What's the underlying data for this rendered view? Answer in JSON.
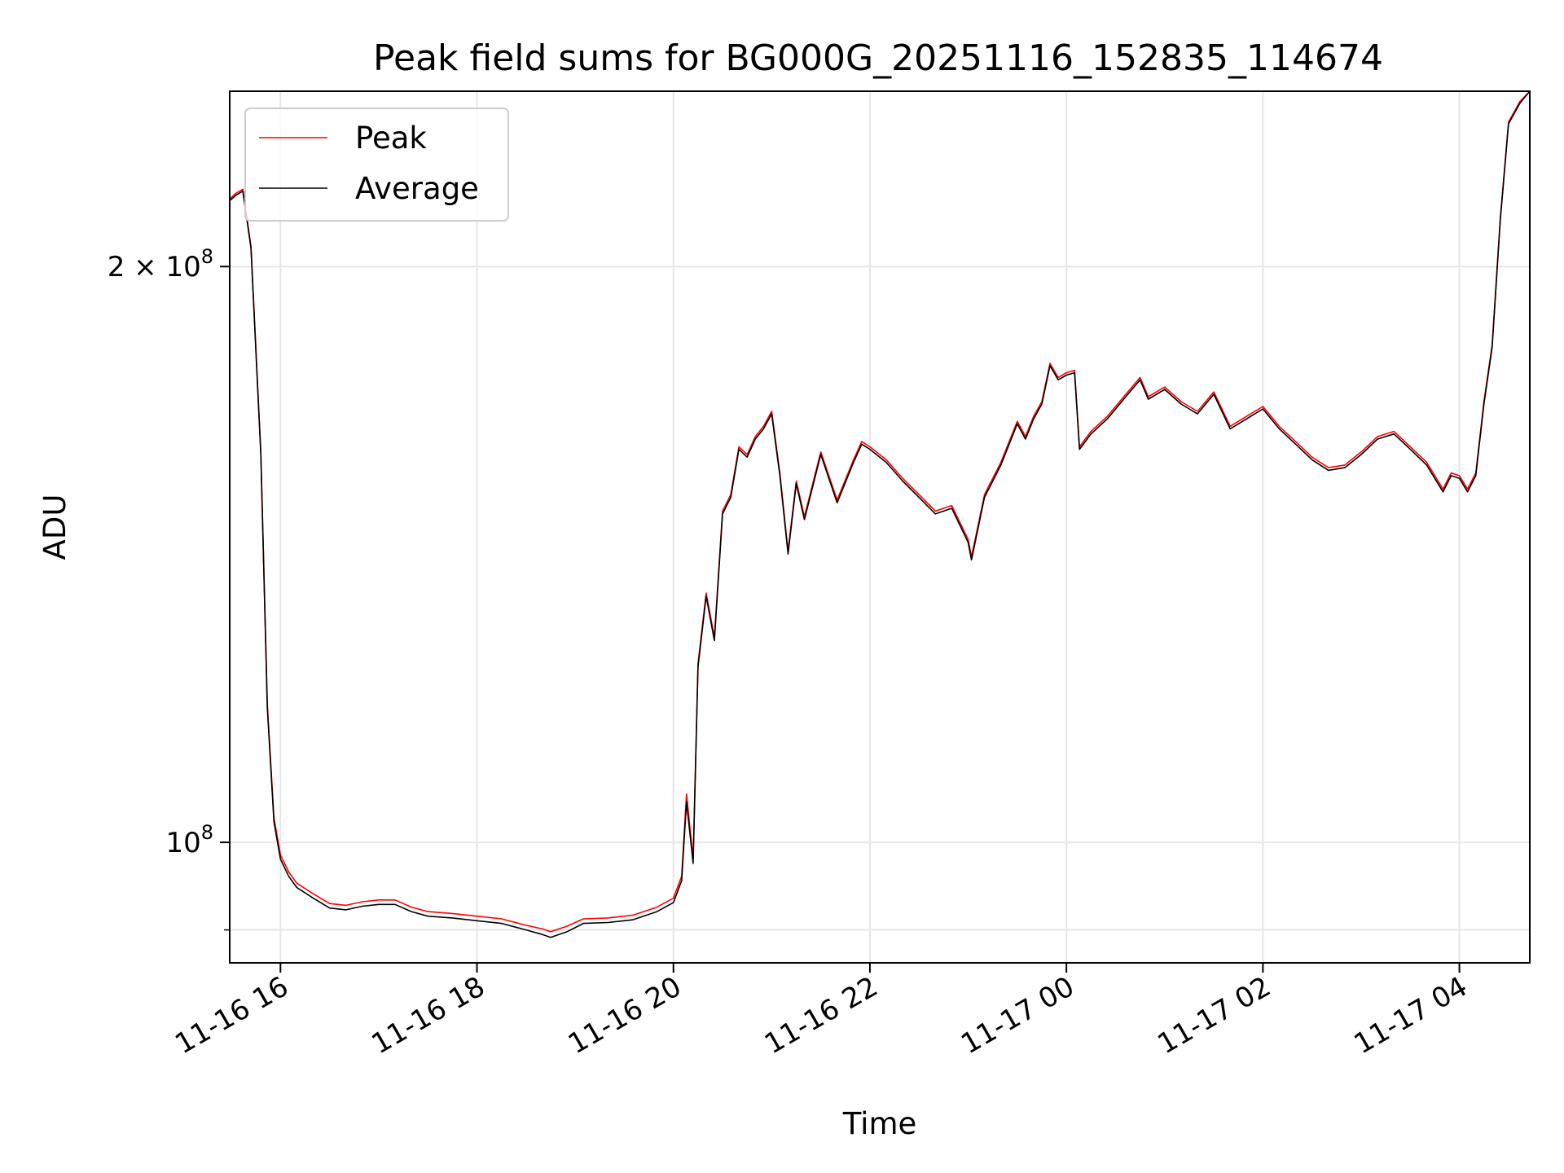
{
  "chart_data": {
    "type": "line",
    "title": "Peak field sums for BG000G_20251116_152835_114674",
    "xlabel": "Time",
    "ylabel": "ADU",
    "y_scale": "log",
    "x_range": [
      "2025-11-16 15:29",
      "2025-11-17 04:43"
    ],
    "ylim": [
      86500000,
      247000000
    ],
    "grid": true,
    "legend": {
      "placement": "top-left",
      "entries": [
        "Peak",
        "Average"
      ]
    },
    "x_ticks": [
      {
        "t": "2025-11-16 16:00",
        "label": "11-16 16"
      },
      {
        "t": "2025-11-16 18:00",
        "label": "11-16 18"
      },
      {
        "t": "2025-11-16 20:00",
        "label": "11-16 20"
      },
      {
        "t": "2025-11-16 22:00",
        "label": "11-16 22"
      },
      {
        "t": "2025-11-17 00:00",
        "label": "11-17 00"
      },
      {
        "t": "2025-11-17 02:00",
        "label": "11-17 02"
      },
      {
        "t": "2025-11-17 04:00",
        "label": "11-17 04"
      }
    ],
    "y_ticks": [
      {
        "value": 100000000,
        "base": "10",
        "exp": "8",
        "coef": ""
      },
      {
        "value": 200000000,
        "base": "10",
        "exp": "8",
        "coef": "2 × "
      }
    ],
    "y_minor_ticks": [
      90000000
    ],
    "series": [
      {
        "name": "Peak",
        "color": "#ff0000",
        "x": [
          "2025-11-16 15:29",
          "2025-11-16 15:33",
          "2025-11-16 15:37",
          "2025-11-16 15:42",
          "2025-11-16 15:48",
          "2025-11-16 15:52",
          "2025-11-16 15:56",
          "2025-11-16 16:00",
          "2025-11-16 16:05",
          "2025-11-16 16:10",
          "2025-11-16 16:20",
          "2025-11-16 16:30",
          "2025-11-16 16:40",
          "2025-11-16 16:50",
          "2025-11-16 17:00",
          "2025-11-16 17:10",
          "2025-11-16 17:20",
          "2025-11-16 17:30",
          "2025-11-16 17:45",
          "2025-11-16 18:00",
          "2025-11-16 18:15",
          "2025-11-16 18:30",
          "2025-11-16 18:40",
          "2025-11-16 18:45",
          "2025-11-16 18:55",
          "2025-11-16 19:05",
          "2025-11-16 19:20",
          "2025-11-16 19:35",
          "2025-11-16 19:50",
          "2025-11-16 20:00",
          "2025-11-16 20:05",
          "2025-11-16 20:08",
          "2025-11-16 20:12",
          "2025-11-16 20:15",
          "2025-11-16 20:20",
          "2025-11-16 20:25",
          "2025-11-16 20:30",
          "2025-11-16 20:35",
          "2025-11-16 20:40",
          "2025-11-16 20:45",
          "2025-11-16 20:50",
          "2025-11-16 20:55",
          "2025-11-16 21:00",
          "2025-11-16 21:05",
          "2025-11-16 21:10",
          "2025-11-16 21:15",
          "2025-11-16 21:20",
          "2025-11-16 21:30",
          "2025-11-16 21:40",
          "2025-11-16 21:50",
          "2025-11-16 21:55",
          "2025-11-16 22:00",
          "2025-11-16 22:10",
          "2025-11-16 22:20",
          "2025-11-16 22:30",
          "2025-11-16 22:40",
          "2025-11-16 22:50",
          "2025-11-16 23:00",
          "2025-11-16 23:02",
          "2025-11-16 23:10",
          "2025-11-16 23:20",
          "2025-11-16 23:30",
          "2025-11-16 23:35",
          "2025-11-16 23:40",
          "2025-11-16 23:45",
          "2025-11-16 23:50",
          "2025-11-16 23:55",
          "2025-11-17 00:00",
          "2025-11-17 00:05",
          "2025-11-17 00:08",
          "2025-11-17 00:15",
          "2025-11-17 00:25",
          "2025-11-17 00:35",
          "2025-11-17 00:45",
          "2025-11-17 00:50",
          "2025-11-17 01:00",
          "2025-11-17 01:10",
          "2025-11-17 01:20",
          "2025-11-17 01:30",
          "2025-11-17 01:40",
          "2025-11-17 01:50",
          "2025-11-17 02:00",
          "2025-11-17 02:10",
          "2025-11-17 02:20",
          "2025-11-17 02:30",
          "2025-11-17 02:40",
          "2025-11-17 02:50",
          "2025-11-17 03:00",
          "2025-11-17 03:10",
          "2025-11-17 03:20",
          "2025-11-17 03:30",
          "2025-11-17 03:40",
          "2025-11-17 03:50",
          "2025-11-17 03:55",
          "2025-11-17 04:00",
          "2025-11-17 04:05",
          "2025-11-17 04:10",
          "2025-11-17 04:15",
          "2025-11-17 04:20",
          "2025-11-17 04:25",
          "2025-11-17 04:30",
          "2025-11-17 04:37",
          "2025-11-17 04:43"
        ],
        "y": [
          217000000,
          218500000,
          219500000,
          205000000,
          160000000,
          118000000,
          103000000,
          98500000,
          96500000,
          95200000,
          94000000,
          92900000,
          92700000,
          93100000,
          93300000,
          93300000,
          92500000,
          92000000,
          91800000,
          91500000,
          91200000,
          90500000,
          90100000,
          89800000,
          90400000,
          91200000,
          91300000,
          91600000,
          92500000,
          93500000,
          96000000,
          106000000,
          98000000,
          124000000,
          135000000,
          128000000,
          149000000,
          152000000,
          161000000,
          159500000,
          163000000,
          165000000,
          168000000,
          156000000,
          142000000,
          154500000,
          148000000,
          160000000,
          151000000,
          158500000,
          162000000,
          161000000,
          158500000,
          155000000,
          152000000,
          149000000,
          150000000,
          144000000,
          141000000,
          152000000,
          158000000,
          166000000,
          163000000,
          167000000,
          170000000,
          178000000,
          175000000,
          176000000,
          176500000,
          161000000,
          164000000,
          167000000,
          171000000,
          175000000,
          171000000,
          173000000,
          170000000,
          168000000,
          172000000,
          165000000,
          167000000,
          169000000,
          165000000,
          162000000,
          159000000,
          157000000,
          157500000,
          160000000,
          163000000,
          164000000,
          161000000,
          158000000,
          153000000,
          156000000,
          155500000,
          153000000,
          156000000,
          170000000,
          182000000,
          212000000,
          238000000,
          244000000,
          247000000
        ]
      },
      {
        "name": "Average",
        "color": "#000000",
        "x": [
          "2025-11-16 15:29",
          "2025-11-16 15:33",
          "2025-11-16 15:37",
          "2025-11-16 15:42",
          "2025-11-16 15:48",
          "2025-11-16 15:52",
          "2025-11-16 15:56",
          "2025-11-16 16:00",
          "2025-11-16 16:05",
          "2025-11-16 16:10",
          "2025-11-16 16:20",
          "2025-11-16 16:30",
          "2025-11-16 16:40",
          "2025-11-16 16:50",
          "2025-11-16 17:00",
          "2025-11-16 17:10",
          "2025-11-16 17:20",
          "2025-11-16 17:30",
          "2025-11-16 17:45",
          "2025-11-16 18:00",
          "2025-11-16 18:15",
          "2025-11-16 18:30",
          "2025-11-16 18:40",
          "2025-11-16 18:45",
          "2025-11-16 18:55",
          "2025-11-16 19:05",
          "2025-11-16 19:20",
          "2025-11-16 19:35",
          "2025-11-16 19:50",
          "2025-11-16 20:00",
          "2025-11-16 20:05",
          "2025-11-16 20:08",
          "2025-11-16 20:12",
          "2025-11-16 20:15",
          "2025-11-16 20:20",
          "2025-11-16 20:25",
          "2025-11-16 20:30",
          "2025-11-16 20:35",
          "2025-11-16 20:40",
          "2025-11-16 20:45",
          "2025-11-16 20:50",
          "2025-11-16 20:55",
          "2025-11-16 21:00",
          "2025-11-16 21:05",
          "2025-11-16 21:10",
          "2025-11-16 21:15",
          "2025-11-16 21:20",
          "2025-11-16 21:30",
          "2025-11-16 21:40",
          "2025-11-16 21:50",
          "2025-11-16 21:55",
          "2025-11-16 22:00",
          "2025-11-16 22:10",
          "2025-11-16 22:20",
          "2025-11-16 22:30",
          "2025-11-16 22:40",
          "2025-11-16 22:50",
          "2025-11-16 23:00",
          "2025-11-16 23:02",
          "2025-11-16 23:10",
          "2025-11-16 23:20",
          "2025-11-16 23:30",
          "2025-11-16 23:35",
          "2025-11-16 23:40",
          "2025-11-16 23:45",
          "2025-11-16 23:50",
          "2025-11-16 23:55",
          "2025-11-17 00:00",
          "2025-11-17 00:05",
          "2025-11-17 00:08",
          "2025-11-17 00:15",
          "2025-11-17 00:25",
          "2025-11-17 00:35",
          "2025-11-17 00:45",
          "2025-11-17 00:50",
          "2025-11-17 01:00",
          "2025-11-17 01:10",
          "2025-11-17 01:20",
          "2025-11-17 01:30",
          "2025-11-17 01:40",
          "2025-11-17 01:50",
          "2025-11-17 02:00",
          "2025-11-17 02:10",
          "2025-11-17 02:20",
          "2025-11-17 02:30",
          "2025-11-17 02:40",
          "2025-11-17 02:50",
          "2025-11-17 03:00",
          "2025-11-17 03:10",
          "2025-11-17 03:20",
          "2025-11-17 03:30",
          "2025-11-17 03:40",
          "2025-11-17 03:50",
          "2025-11-17 03:55",
          "2025-11-17 04:00",
          "2025-11-17 04:05",
          "2025-11-17 04:10",
          "2025-11-17 04:15",
          "2025-11-17 04:20",
          "2025-11-17 04:25",
          "2025-11-17 04:30",
          "2025-11-17 04:37",
          "2025-11-17 04:43"
        ],
        "y": [
          216500000,
          218000000,
          219000000,
          204500000,
          159500000,
          117500000,
          102500000,
          98000000,
          96000000,
          94700000,
          93500000,
          92400000,
          92200000,
          92600000,
          92800000,
          92800000,
          92000000,
          91500000,
          91300000,
          91000000,
          90700000,
          90000000,
          89500000,
          89200000,
          89800000,
          90700000,
          90800000,
          91100000,
          92000000,
          93000000,
          95500000,
          105000000,
          97500000,
          123500000,
          134500000,
          127500000,
          148500000,
          151500000,
          160500000,
          159000000,
          162500000,
          164500000,
          167500000,
          155500000,
          141500000,
          154000000,
          147500000,
          159500000,
          150500000,
          158000000,
          161500000,
          160500000,
          158000000,
          154500000,
          151500000,
          148500000,
          149500000,
          143500000,
          140500000,
          151500000,
          157500000,
          165500000,
          162500000,
          166500000,
          169500000,
          177500000,
          174500000,
          175500000,
          176000000,
          160500000,
          163500000,
          166500000,
          170500000,
          174500000,
          170500000,
          172500000,
          169500000,
          167500000,
          171500000,
          164500000,
          166500000,
          168500000,
          164500000,
          161500000,
          158500000,
          156500000,
          157000000,
          159500000,
          162500000,
          163500000,
          160500000,
          157500000,
          152500000,
          155500000,
          155000000,
          152500000,
          155500000,
          169500000,
          181500000,
          211500000,
          237500000,
          243500000,
          247000000
        ]
      }
    ]
  }
}
